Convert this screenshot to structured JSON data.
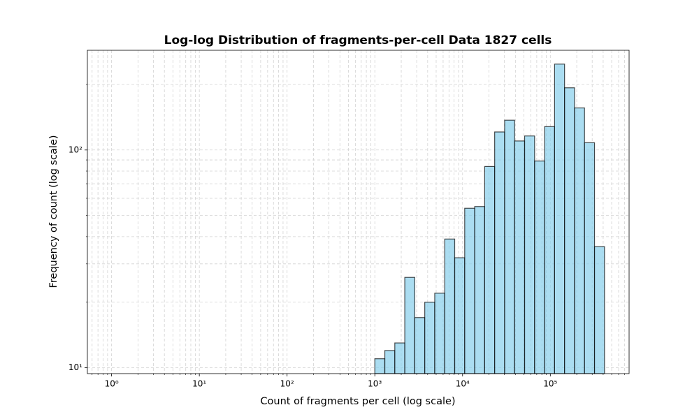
{
  "chart_data": {
    "type": "histogram",
    "title": "Log-log Distribution of fragments-per-cell Data 1827 cells",
    "x_label": "Count of fragments per cell (log scale)",
    "y_label": "Frequency of count (log scale)",
    "bins": [
      1000,
      1300,
      1689,
      2195,
      2852,
      3707,
      4817,
      6260,
      8136,
      10573,
      13740,
      17856,
      23204,
      30155,
      39188,
      50933,
      66191,
      86017,
      111790,
      145280,
      188800,
      245340,
      318890,
      414400
    ],
    "values": [
      11,
      12,
      13,
      26,
      17,
      20,
      22,
      39,
      32,
      54,
      55,
      84,
      121,
      137,
      110,
      116,
      89,
      128,
      248,
      193,
      156,
      108,
      36
    ],
    "color": "#87ceeb",
    "edge_color": "#000000",
    "opacity": 0.7,
    "xscale": "log",
    "yscale": "log",
    "xlim": [
      0.53,
      790000
    ],
    "ylim": [
      9.4,
      287
    ],
    "xticks": [
      {
        "value": 1,
        "label": "10⁰"
      },
      {
        "value": 10,
        "label": "10¹"
      },
      {
        "value": 100,
        "label": "10²"
      },
      {
        "value": 1000,
        "label": "10³"
      },
      {
        "value": 10000,
        "label": "10⁴"
      },
      {
        "value": 100000,
        "label": "10⁵"
      }
    ],
    "yticks": [
      {
        "value": 10,
        "label": "10¹"
      },
      {
        "value": 100,
        "label": "10²"
      }
    ],
    "xminorticks": [
      0.6,
      0.7,
      0.8,
      0.9,
      2,
      3,
      4,
      5,
      6,
      7,
      8,
      9,
      20,
      30,
      40,
      50,
      60,
      70,
      80,
      90,
      200,
      300,
      400,
      500,
      600,
      700,
      800,
      900,
      2000,
      3000,
      4000,
      5000,
      6000,
      7000,
      8000,
      9000,
      20000,
      30000,
      40000,
      50000,
      60000,
      70000,
      80000,
      90000,
      200000,
      300000,
      400000,
      500000,
      600000,
      700000
    ],
    "yminorticks": [
      20,
      30,
      40,
      50,
      60,
      70,
      80,
      90,
      200
    ],
    "grid": true
  }
}
